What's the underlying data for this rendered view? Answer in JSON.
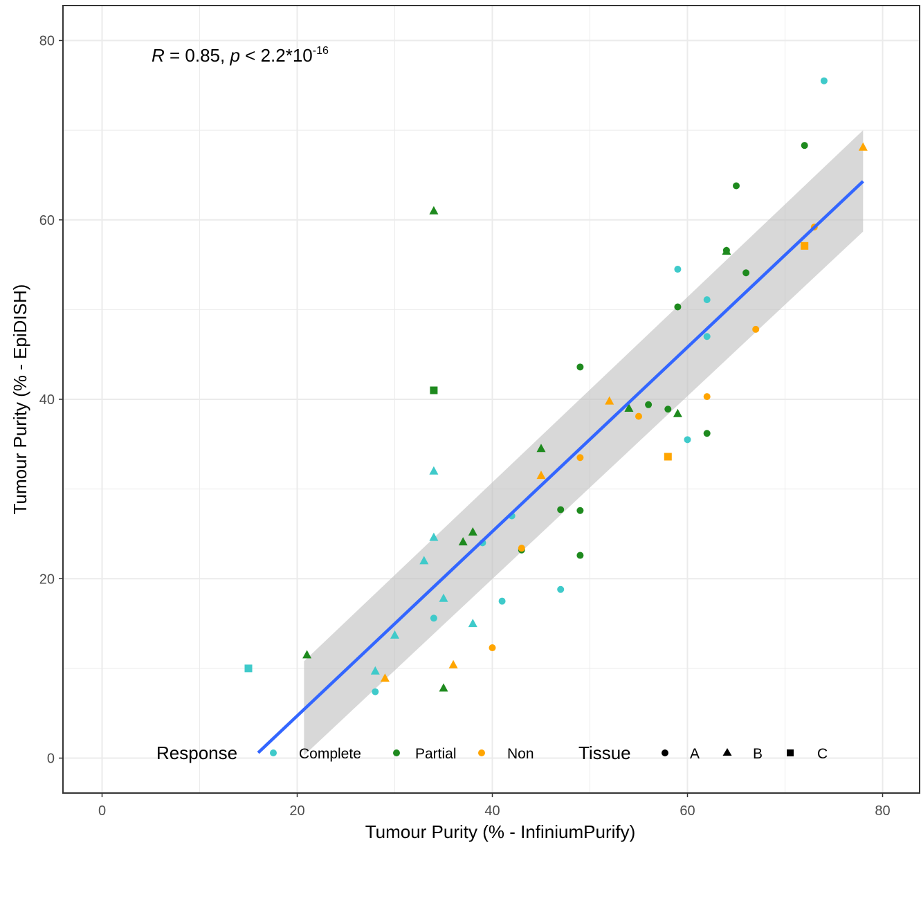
{
  "chart_data": {
    "type": "scatter",
    "title": "",
    "xlabel": "Tumour Purity (% - InfiniumPurify)",
    "ylabel": "Tumour Purity (% - EpiDISH)",
    "xlim": [
      -4,
      84
    ],
    "ylim": [
      -4,
      84
    ],
    "x_ticks": [
      0,
      20,
      40,
      60,
      80
    ],
    "y_ticks": [
      0,
      20,
      40,
      60,
      80
    ],
    "grid": true,
    "annotation": {
      "r_symbol": "R",
      "r_text": " = 0.85, ",
      "p_symbol": "p",
      "p_text": " < 2.2*10",
      "p_exponent": "-16"
    },
    "colors": {
      "Complete": "#3FCACA",
      "Partial": "#1E8A1E",
      "Non": "#FFA500",
      "fit_line": "#3366FF",
      "ribbon": "#BEBEBE"
    },
    "fit": {
      "x_range": [
        16,
        78
      ],
      "line_y": [
        0.6,
        64.3
      ],
      "band_x": [
        20.7,
        78
      ],
      "band_upper": [
        10.8,
        70.0
      ],
      "band_lower": [
        0.3,
        58.7
      ]
    },
    "legend": {
      "placement": "bottom",
      "response_title": "Response",
      "response_items": [
        "Complete",
        "Partial",
        "Non"
      ],
      "tissue_title": "Tissue",
      "tissue_items": [
        {
          "label": "A",
          "shape": "circle"
        },
        {
          "label": "B",
          "shape": "triangle"
        },
        {
          "label": "C",
          "shape": "square"
        }
      ]
    },
    "points": [
      {
        "x": 74,
        "y": 75.5,
        "response": "Complete",
        "tissue": "A"
      },
      {
        "x": 59,
        "y": 54.5,
        "response": "Complete",
        "tissue": "A"
      },
      {
        "x": 62,
        "y": 51.1,
        "response": "Complete",
        "tissue": "A"
      },
      {
        "x": 62,
        "y": 47.0,
        "response": "Complete",
        "tissue": "A"
      },
      {
        "x": 60,
        "y": 35.5,
        "response": "Complete",
        "tissue": "A"
      },
      {
        "x": 42,
        "y": 27.0,
        "response": "Complete",
        "tissue": "A"
      },
      {
        "x": 39,
        "y": 24.0,
        "response": "Complete",
        "tissue": "A"
      },
      {
        "x": 47,
        "y": 18.8,
        "response": "Complete",
        "tissue": "A"
      },
      {
        "x": 41,
        "y": 17.5,
        "response": "Complete",
        "tissue": "A"
      },
      {
        "x": 34,
        "y": 15.6,
        "response": "Complete",
        "tissue": "A"
      },
      {
        "x": 28,
        "y": 7.4,
        "response": "Complete",
        "tissue": "A"
      },
      {
        "x": 34,
        "y": 32.0,
        "response": "Complete",
        "tissue": "B"
      },
      {
        "x": 34,
        "y": 24.6,
        "response": "Complete",
        "tissue": "B"
      },
      {
        "x": 33,
        "y": 22.0,
        "response": "Complete",
        "tissue": "B"
      },
      {
        "x": 35,
        "y": 17.8,
        "response": "Complete",
        "tissue": "B"
      },
      {
        "x": 38,
        "y": 15.0,
        "response": "Complete",
        "tissue": "B"
      },
      {
        "x": 30,
        "y": 13.7,
        "response": "Complete",
        "tissue": "B"
      },
      {
        "x": 28,
        "y": 9.7,
        "response": "Complete",
        "tissue": "B"
      },
      {
        "x": 15,
        "y": 10.0,
        "response": "Complete",
        "tissue": "C"
      },
      {
        "x": 72,
        "y": 68.3,
        "response": "Partial",
        "tissue": "A"
      },
      {
        "x": 65,
        "y": 63.8,
        "response": "Partial",
        "tissue": "A"
      },
      {
        "x": 64,
        "y": 56.6,
        "response": "Partial",
        "tissue": "A"
      },
      {
        "x": 66,
        "y": 54.1,
        "response": "Partial",
        "tissue": "A"
      },
      {
        "x": 59,
        "y": 50.3,
        "response": "Partial",
        "tissue": "A"
      },
      {
        "x": 49,
        "y": 43.6,
        "response": "Partial",
        "tissue": "A"
      },
      {
        "x": 56,
        "y": 39.4,
        "response": "Partial",
        "tissue": "A"
      },
      {
        "x": 58,
        "y": 38.9,
        "response": "Partial",
        "tissue": "A"
      },
      {
        "x": 62,
        "y": 36.2,
        "response": "Partial",
        "tissue": "A"
      },
      {
        "x": 47,
        "y": 27.7,
        "response": "Partial",
        "tissue": "A"
      },
      {
        "x": 49,
        "y": 27.6,
        "response": "Partial",
        "tissue": "A"
      },
      {
        "x": 43,
        "y": 23.2,
        "response": "Partial",
        "tissue": "A"
      },
      {
        "x": 49,
        "y": 22.6,
        "response": "Partial",
        "tissue": "A"
      },
      {
        "x": 34,
        "y": 61.0,
        "response": "Partial",
        "tissue": "B"
      },
      {
        "x": 64,
        "y": 56.5,
        "response": "Partial",
        "tissue": "B"
      },
      {
        "x": 54,
        "y": 39.0,
        "response": "Partial",
        "tissue": "B"
      },
      {
        "x": 59,
        "y": 38.4,
        "response": "Partial",
        "tissue": "B"
      },
      {
        "x": 45,
        "y": 34.5,
        "response": "Partial",
        "tissue": "B"
      },
      {
        "x": 38,
        "y": 25.2,
        "response": "Partial",
        "tissue": "B"
      },
      {
        "x": 37,
        "y": 24.1,
        "response": "Partial",
        "tissue": "B"
      },
      {
        "x": 21,
        "y": 11.5,
        "response": "Partial",
        "tissue": "B"
      },
      {
        "x": 35,
        "y": 7.8,
        "response": "Partial",
        "tissue": "B"
      },
      {
        "x": 34,
        "y": 41.0,
        "response": "Partial",
        "tissue": "C"
      },
      {
        "x": 73,
        "y": 59.2,
        "response": "Non",
        "tissue": "A"
      },
      {
        "x": 67,
        "y": 47.8,
        "response": "Non",
        "tissue": "A"
      },
      {
        "x": 62,
        "y": 40.3,
        "response": "Non",
        "tissue": "A"
      },
      {
        "x": 55,
        "y": 38.1,
        "response": "Non",
        "tissue": "A"
      },
      {
        "x": 49,
        "y": 33.5,
        "response": "Non",
        "tissue": "A"
      },
      {
        "x": 43,
        "y": 23.4,
        "response": "Non",
        "tissue": "A"
      },
      {
        "x": 40,
        "y": 12.3,
        "response": "Non",
        "tissue": "A"
      },
      {
        "x": 78,
        "y": 68.1,
        "response": "Non",
        "tissue": "B"
      },
      {
        "x": 52,
        "y": 39.8,
        "response": "Non",
        "tissue": "B"
      },
      {
        "x": 45,
        "y": 31.5,
        "response": "Non",
        "tissue": "B"
      },
      {
        "x": 36,
        "y": 10.4,
        "response": "Non",
        "tissue": "B"
      },
      {
        "x": 29,
        "y": 8.9,
        "response": "Non",
        "tissue": "B"
      },
      {
        "x": 72,
        "y": 57.1,
        "response": "Non",
        "tissue": "C"
      },
      {
        "x": 58,
        "y": 33.6,
        "response": "Non",
        "tissue": "C"
      }
    ]
  }
}
